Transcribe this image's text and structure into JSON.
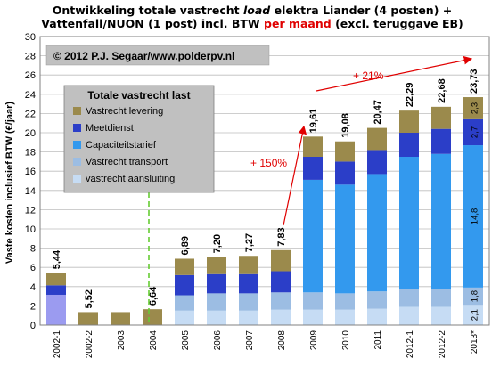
{
  "chart_data": {
    "type": "bar",
    "title_parts": [
      {
        "text": "Ontwikkeling  totale vastrecht ",
        "style": "bold"
      },
      {
        "text": "load",
        "style": "bold-italic"
      },
      {
        "text": " elektra Liander (4 posten) +",
        "style": "bold"
      }
    ],
    "title_line2_parts": [
      {
        "text": "Vattenfall/NUON (1 post) incl. BTW ",
        "style": "bold"
      },
      {
        "text": "per maand",
        "style": "red"
      },
      {
        "text": " (excl. teruggave EB)",
        "style": "bold"
      }
    ],
    "ylabel": "Vaste kosten inclusief BTW (€/jaar)",
    "ylim": [
      0,
      30
    ],
    "yticks": [
      0,
      2,
      4,
      6,
      8,
      10,
      12,
      14,
      16,
      18,
      20,
      22,
      24,
      26,
      28,
      30
    ],
    "grid": true,
    "categories": [
      "2002-1",
      "2002-2",
      "2003",
      "2004",
      "2005",
      "2006",
      "2007",
      "2008",
      "2009",
      "2010",
      "2011",
      "2012-1",
      "2012-2",
      "2013*"
    ],
    "totals": [
      "5,44",
      "5,52",
      "",
      "6,64",
      "6,89",
      "7,20",
      "7,27",
      "7,83",
      "19,61",
      "19,08",
      "20,47",
      "22,29",
      "22,68",
      "23,73"
    ],
    "series": [
      {
        "name": "vastrecht aansluiting",
        "color": "#c6dcf4",
        "values": [
          0,
          0,
          0,
          0,
          1.5,
          1.5,
          1.5,
          1.6,
          1.6,
          1.6,
          1.7,
          1.9,
          1.9,
          2.1
        ]
      },
      {
        "name": "Vastrecht transport",
        "color": "#9cbde3",
        "values": [
          0,
          0,
          0,
          0,
          1.6,
          1.8,
          1.8,
          1.8,
          1.8,
          1.7,
          1.8,
          1.8,
          1.8,
          1.8
        ]
      },
      {
        "name": "Capaciteitstarief",
        "color": "#3399ee",
        "values": [
          0,
          0,
          0,
          0,
          0,
          0,
          0,
          0,
          11.7,
          11.3,
          12.2,
          13.8,
          14.1,
          14.8
        ]
      },
      {
        "name": "Meetdienst",
        "color": "#2b3ec8",
        "values": [
          0.99,
          0,
          0,
          0,
          2.1,
          2.0,
          2.0,
          2.2,
          2.4,
          2.4,
          2.5,
          2.5,
          2.6,
          2.7
        ]
      },
      {
        "name": "Vastrecht levering",
        "color": "#9b8a4c",
        "values": [
          1.3,
          1.35,
          1.35,
          1.65,
          1.7,
          1.8,
          1.9,
          2.2,
          2.1,
          2.1,
          2.3,
          2.3,
          2.3,
          2.3
        ]
      }
    ],
    "base_2002_1": {
      "color": "#9b9bf0",
      "value": 3.15
    },
    "segment_labels_2013": [
      "2,1",
      "1,8",
      "14,8",
      "2,7",
      "2,3"
    ],
    "legend": {
      "title": "Totale vastrecht last",
      "placement": "top-left",
      "entries": [
        {
          "label": "Vastrecht levering",
          "color": "#9b8a4c"
        },
        {
          "label": "Meetdienst",
          "color": "#2b3ec8"
        },
        {
          "label": "Capaciteitstarief",
          "color": "#3399ee"
        },
        {
          "label": "Vastrecht transport",
          "color": "#9cbde3"
        },
        {
          "label": "vastrecht aansluiting",
          "color": "#c6dcf4"
        }
      ]
    },
    "annotations": {
      "copyright": "© 2012 P.J. Segaar/www.polderpv.nl",
      "pct_150": "+ 150%",
      "pct_21": "+ 21%"
    },
    "colors": {
      "plot_bg": "#ffffff",
      "legend_bg": "#c0c0c0",
      "copyright_bg": "#c0c0c0",
      "arrow": "#e00000",
      "dashed_line": "#66cc33"
    }
  }
}
